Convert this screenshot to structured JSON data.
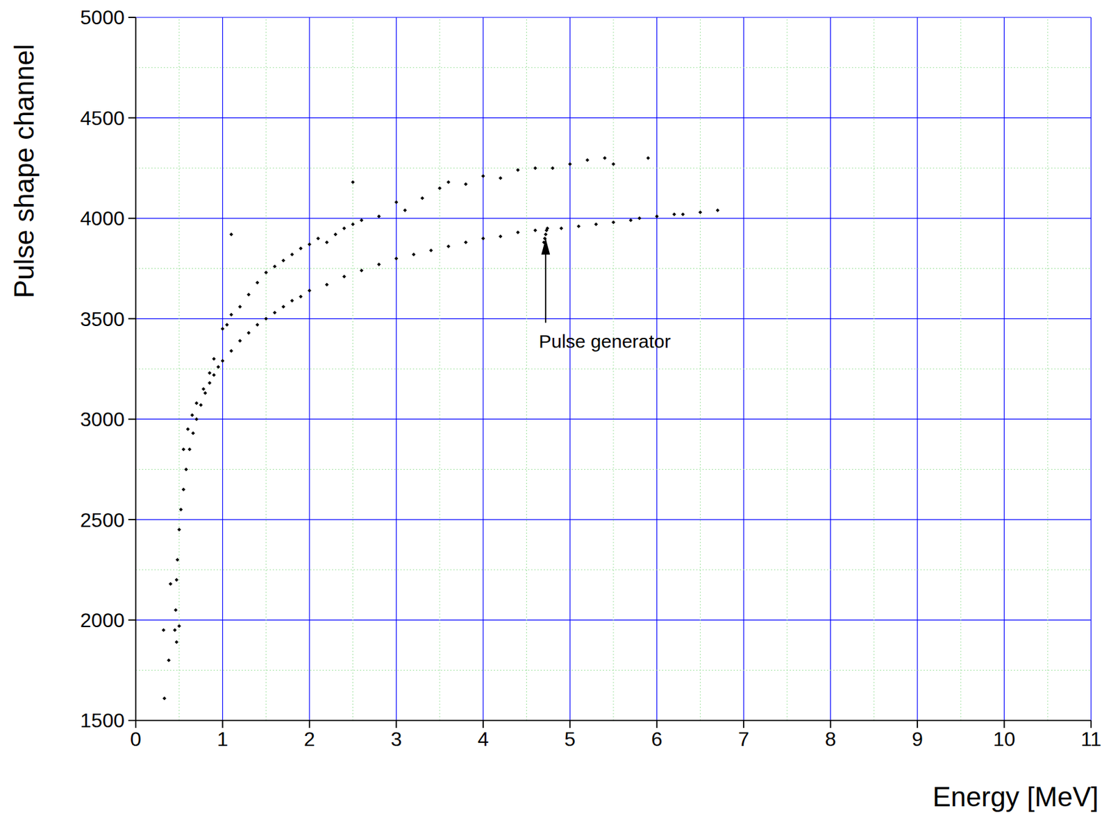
{
  "chart_data": {
    "type": "scatter",
    "x_label": "Energy [MeV]",
    "y_label": "Pulse shape channel",
    "xlim": [
      0,
      11
    ],
    "xticks": [
      0,
      1,
      2,
      3,
      4,
      5,
      6,
      7,
      8,
      9,
      10,
      11
    ],
    "ylim": [
      1500,
      5000
    ],
    "yticks": [
      1500,
      2000,
      2500,
      3000,
      3500,
      4000,
      4500,
      5000
    ],
    "grid": true,
    "color": "#000000",
    "marker": "diamond",
    "x": [
      0.45,
      0.46,
      0.47,
      0.48,
      0.5,
      0.52,
      0.55,
      0.58,
      0.62,
      0.66,
      0.7,
      0.75,
      0.8,
      0.85,
      0.9,
      0.95,
      1.0,
      1.1,
      1.2,
      1.3,
      1.4,
      1.5,
      1.6,
      1.7,
      1.8,
      1.9,
      2.0,
      2.2,
      2.4,
      2.6,
      2.8,
      3.0,
      3.2,
      3.4,
      3.6,
      3.8,
      4.0,
      4.2,
      4.4,
      4.6,
      4.9,
      5.1,
      5.3,
      5.5,
      5.7,
      5.8,
      6.0,
      6.2,
      6.3,
      6.5,
      6.7,
      0.33,
      0.32,
      0.38,
      0.4,
      0.47,
      0.5,
      0.55,
      0.6,
      0.65,
      0.7,
      0.78,
      0.85,
      0.9,
      1.0,
      1.05,
      1.1,
      1.2,
      1.3,
      1.4,
      1.5,
      1.6,
      1.7,
      1.8,
      1.9,
      2.0,
      2.1,
      2.2,
      2.3,
      2.4,
      2.5,
      2.6,
      2.8,
      3.0,
      3.1,
      3.3,
      3.5,
      3.6,
      3.8,
      4.0,
      4.2,
      4.4,
      4.6,
      4.8,
      5.0,
      5.2,
      5.4,
      5.5,
      5.9,
      1.1,
      2.5,
      4.7,
      4.72,
      4.74,
      4.71,
      4.73
    ],
    "values": [
      1950,
      2050,
      2200,
      2300,
      2450,
      2550,
      2650,
      2750,
      2850,
      2930,
      3000,
      3070,
      3130,
      3180,
      3220,
      3260,
      3290,
      3340,
      3390,
      3430,
      3470,
      3500,
      3530,
      3560,
      3590,
      3610,
      3640,
      3670,
      3710,
      3740,
      3770,
      3800,
      3820,
      3840,
      3860,
      3880,
      3900,
      3910,
      3930,
      3940,
      3950,
      3960,
      3970,
      3980,
      3990,
      4000,
      4010,
      4020,
      4020,
      4030,
      4040,
      1610,
      1950,
      1800,
      2180,
      1890,
      1970,
      2850,
      2950,
      3020,
      3080,
      3150,
      3230,
      3300,
      3450,
      3470,
      3520,
      3560,
      3620,
      3680,
      3730,
      3760,
      3790,
      3820,
      3850,
      3870,
      3900,
      3880,
      3920,
      3950,
      3970,
      3990,
      4010,
      4080,
      4040,
      4100,
      4150,
      4180,
      4170,
      4210,
      4200,
      4240,
      4250,
      4250,
      4270,
      4290,
      4300,
      4270,
      4300,
      3920,
      4180,
      3880,
      3920,
      3950,
      3900,
      3940
    ],
    "annotations": [
      {
        "text": "Pulse generator",
        "xy": [
          4.72,
          3900
        ],
        "xytext": [
          4.72,
          3480
        ]
      }
    ]
  }
}
